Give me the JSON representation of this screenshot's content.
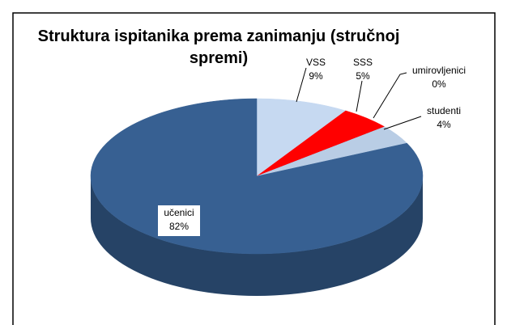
{
  "chart_data": {
    "type": "pie",
    "title": "Struktura ispitanika prema zanimanju (stručnoj spremi)",
    "categories": [
      "VSS",
      "SSS",
      "umirovljenici",
      "studenti",
      "učenici"
    ],
    "values": [
      9,
      5,
      0,
      4,
      82
    ],
    "value_labels": [
      "9%",
      "5%",
      "0%",
      "4%",
      "82%"
    ],
    "colors": [
      "#c6d9f1",
      "#ff0000",
      "#8eb4e3",
      "#b9cde5",
      "#376092"
    ]
  }
}
